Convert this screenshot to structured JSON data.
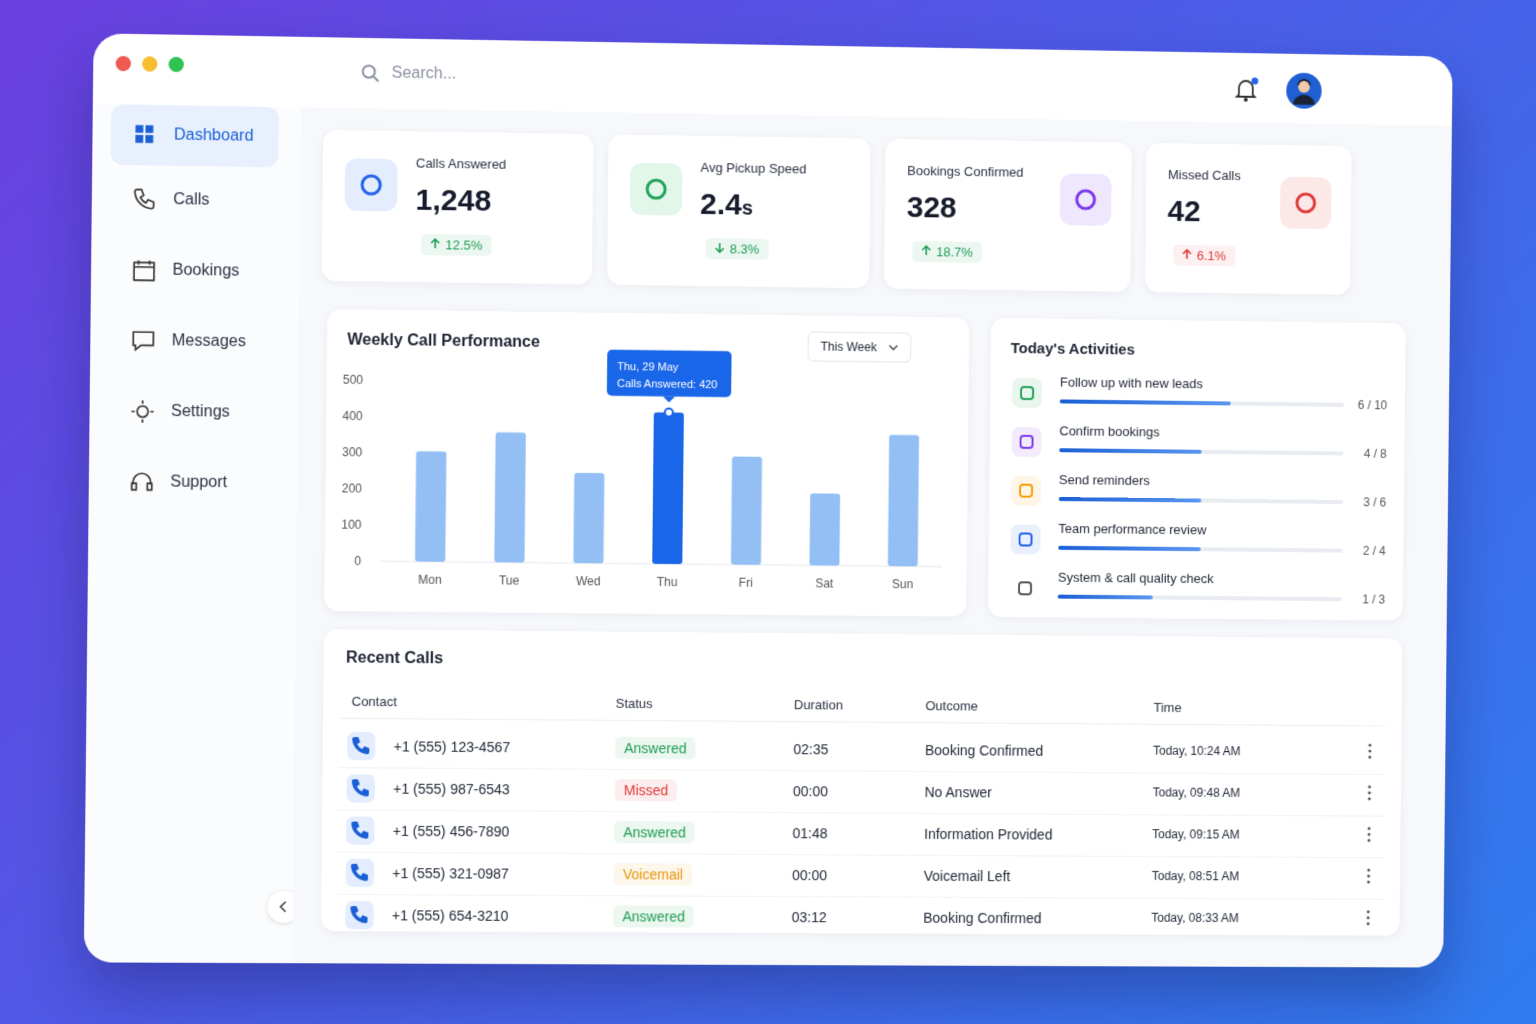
{
  "window": {
    "search_placeholder": "Search..."
  },
  "sidebar": [
    "Dashboard",
    "Calls",
    "Bookings",
    "Messages",
    "Settings",
    "Support"
  ],
  "stats": [
    {
      "label": "Calls Answered",
      "value": "1,248",
      "change": "12.5%",
      "trend": "up",
      "change_color": "#1f9d55",
      "icon_color": "#2563eb",
      "icon_bg": "#e3edfd"
    },
    {
      "label": "Avg Pickup Speed",
      "value": "2.4",
      "unit": "s",
      "change": "8.3%",
      "trend": "down",
      "change_color": "#1f9d55",
      "icon_color": "#22a35a",
      "icon_bg": "#e2f6ea"
    },
    {
      "label": "Bookings Confirmed",
      "value": "328",
      "change": "18.7%",
      "trend": "up",
      "change_color": "#1f9d55",
      "icon_color": "#7c3aed",
      "icon_bg": "#efe7fd"
    },
    {
      "label": "Missed Calls",
      "value": "42",
      "change": "6.1%",
      "trend": "up",
      "change_color": "#e03a3a",
      "icon_color": "#e03a3a",
      "icon_bg": "#fde8e8"
    }
  ],
  "chart_data": {
    "type": "bar",
    "title": "Weekly Call Performance",
    "filter": "This Week",
    "categories": [
      "Mon",
      "Tue",
      "Wed",
      "Thu",
      "Fri",
      "Sat",
      "Sun"
    ],
    "values": [
      305,
      360,
      250,
      420,
      300,
      200,
      365
    ],
    "ylim": [
      0,
      500
    ],
    "yticks": [
      0,
      100,
      200,
      300,
      400,
      500
    ],
    "color": "#93bff5",
    "highlight": 3,
    "highlight_color": "#1a66e8",
    "tooltip": {
      "date": "Thu, 29 May",
      "text": "Calls Answered: 420"
    }
  },
  "activities": {
    "title": "Today's Activities",
    "items": [
      {
        "label": "Follow up with new leads",
        "done": 6,
        "total": 10,
        "progress_label": "6 / 10",
        "icon_color": "#22a35a"
      },
      {
        "label": "Confirm bookings",
        "done": 4,
        "total": 8,
        "progress_label": "4 / 8",
        "icon_color": "#7c3aed"
      },
      {
        "label": "Send reminders",
        "done": 3,
        "total": 6,
        "progress_label": "3 / 6",
        "icon_color": "#f59e0b"
      },
      {
        "label": "Team performance review",
        "done": 2,
        "total": 4,
        "progress_label": "2 / 4",
        "icon_color": "#2563eb"
      },
      {
        "label": "System & call quality check",
        "done": 1,
        "total": 3,
        "progress_label": "1 / 3",
        "icon_color": "#555"
      }
    ]
  },
  "recent_calls": {
    "title": "Recent Calls",
    "columns": [
      "Contact",
      "Status",
      "Duration",
      "Outcome",
      "Time"
    ],
    "rows": [
      {
        "cells": [
          "+1 (555) 123-4567",
          "Answered",
          "02:35",
          "Booking Confirmed",
          "Today, 10:24 AM"
        ],
        "status_color": "#1f9d55"
      },
      {
        "cells": [
          "+1 (555) 987-6543",
          "Missed",
          "00:00",
          "No Answer",
          "Today, 09:48 AM"
        ],
        "status_color": "#e03a3a"
      },
      {
        "cells": [
          "+1 (555) 456-7890",
          "Answered",
          "01:48",
          "Information Provided",
          "Today, 09:15 AM"
        ],
        "status_color": "#1f9d55"
      },
      {
        "cells": [
          "+1 (555) 321-0987",
          "Voicemail",
          "00:00",
          "Voicemail Left",
          "Today, 08:51 AM"
        ],
        "status_color": "#e8960c"
      },
      {
        "cells": [
          "+1 (555) 654-3210",
          "Answered",
          "03:12",
          "Booking Confirmed",
          "Today, 08:33 AM"
        ],
        "status_color": "#1f9d55"
      }
    ]
  }
}
